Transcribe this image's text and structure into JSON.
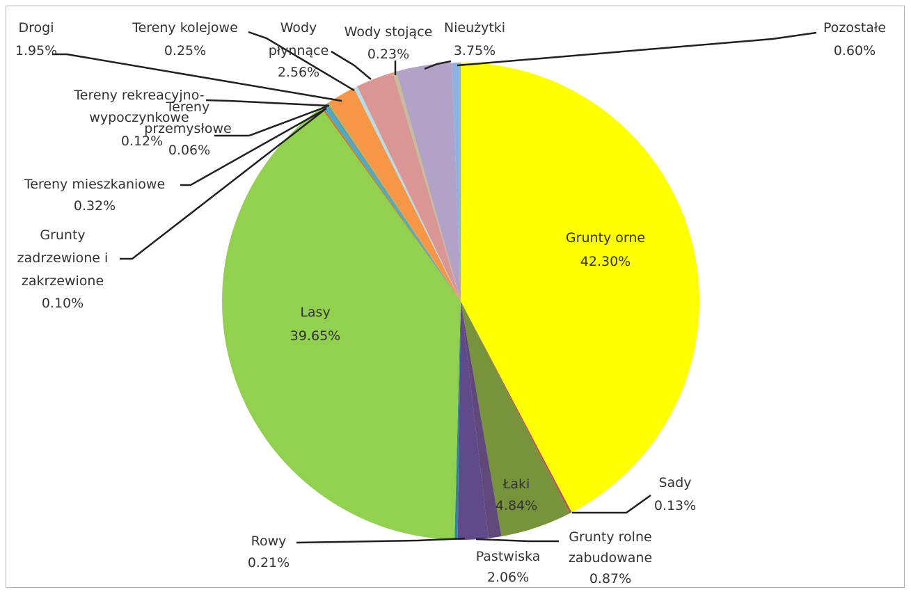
{
  "chart_data": {
    "type": "pie",
    "title": "",
    "slices": [
      {
        "name": "Grunty orne",
        "pct": "42.30%",
        "value": 42.3,
        "color": "#ffff00"
      },
      {
        "name": "Sady",
        "pct": "0.13%",
        "value": 0.13,
        "color": "#c0504d"
      },
      {
        "name": "Łaki",
        "pct": "4.84%",
        "value": 4.84,
        "color": "#77933c"
      },
      {
        "name": "Grunty rolne zabudowane",
        "pct": "0.87%",
        "value": 0.87,
        "color": "#60497a"
      },
      {
        "name": "Pastwiska",
        "pct": "2.06%",
        "value": 2.06,
        "color": "#5f4a8a"
      },
      {
        "name": "Rowy",
        "pct": "0.21%",
        "value": 0.21,
        "color": "#31859c"
      },
      {
        "name": "Lasy",
        "pct": "39.65%",
        "value": 39.65,
        "color": "#92d050"
      },
      {
        "name": "Grunty zadrzewione i zakrzewione",
        "pct": "0.10%",
        "value": 0.1,
        "color": "#e46c0a"
      },
      {
        "name": "Tereny mieszkaniowe",
        "pct": "0.32%",
        "value": 0.32,
        "color": "#4bacc6"
      },
      {
        "name": "Tereny przemysłowe",
        "pct": "0.06%",
        "value": 0.06,
        "color": "#8064a2"
      },
      {
        "name": "Tereny rekreacyjno-wypoczynkowe",
        "pct": "0.12%",
        "value": 0.12,
        "color": "#9bbb59"
      },
      {
        "name": "Drogi",
        "pct": "1.95%",
        "value": 1.95,
        "color": "#f79646"
      },
      {
        "name": "Tereny kolejowe",
        "pct": "0.25%",
        "value": 0.25,
        "color": "#b7dde8"
      },
      {
        "name": "Wody płynnące",
        "pct": "2.56%",
        "value": 2.56,
        "color": "#d99694"
      },
      {
        "name": "Wody stojące",
        "pct": "0.23%",
        "value": 0.23,
        "color": "#c4bd97"
      },
      {
        "name": "Nieużytki",
        "pct": "3.75%",
        "value": 3.75,
        "color": "#b3a2c7"
      },
      {
        "name": "Pozostałe",
        "pct": "0.60%",
        "value": 0.6,
        "color": "#8db3e2"
      }
    ],
    "labels": {
      "grunty_orne": {
        "l1": "Grunty orne",
        "l2": "42.30%"
      },
      "lasy": {
        "l1": "Lasy",
        "l2": "39.65%"
      },
      "laki": {
        "l1": "Łaki",
        "l2": "4.84%"
      },
      "sady": {
        "l1": "Sady",
        "l2": "0.13%"
      },
      "grunty_rolne_zabudowane": {
        "l1": "Grunty rolne",
        "l2": "zabudowane",
        "l3": "0.87%"
      },
      "pastwiska": {
        "l1": "Pastwiska",
        "l2": "2.06%"
      },
      "rowy": {
        "l1": "Rowy",
        "l2": "0.21%"
      },
      "grunty_zadrzewione": {
        "l1": "Grunty",
        "l2": "zadrzewione i",
        "l3": "zakrzewione",
        "l4": "0.10%"
      },
      "tereny_mieszkaniowe": {
        "l1": "Tereny mieszkaniowe",
        "l2": "0.32%"
      },
      "tereny_rekreacyjno": {
        "l1": "Tereny rekreacyjno-",
        "l2": "wypoczynkowe",
        "l3": "0.12%"
      },
      "tereny_przemyslowe": {
        "l1": "Tereny",
        "l2": "przemysłowe",
        "l3": "0.06%"
      },
      "drogi": {
        "l1": "Drogi",
        "l2": "1.95%"
      },
      "tereny_kolejowe": {
        "l1": "Tereny kolejowe",
        "l2": "0.25%"
      },
      "wody_plynace": {
        "l1": "Wody",
        "l2": "płynnące",
        "l3": "2.56%"
      },
      "wody_stojace": {
        "l1": "Wody stojące",
        "l2": "0.23%"
      },
      "nieuzytki": {
        "l1": "Nieużytki",
        "l2": "3.75%"
      },
      "pozostale": {
        "l1": "Pozostałe",
        "l2": "0.60%"
      }
    }
  }
}
